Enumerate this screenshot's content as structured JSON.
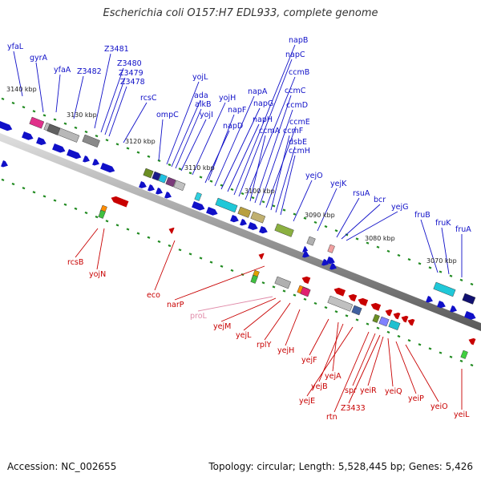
{
  "title": "Escherichia coli O157:H7 EDL933, complete genome",
  "accession": "Accession: NC_002655",
  "summary": "Topology: circular; Length: 5,528,445 bp; Genes: 5,426",
  "ticks": [
    "3140 kbp",
    "3130 kbp",
    "3120 kbp",
    "3110 kbp",
    "3100 kbp",
    "3090 kbp",
    "3080 kbp",
    "3070 kbp"
  ],
  "forward_labels": [
    "yfaL",
    "gyrA",
    "yfaA",
    "Z3482",
    "Z3481",
    "Z3480",
    "Z3479",
    "Z3478",
    "rcsC",
    "ompC",
    "yojL",
    "ada",
    "alkB",
    "yojI",
    "yojH",
    "napF",
    "napD",
    "napA",
    "napG",
    "napH",
    "napB",
    "napC",
    "ccmB",
    "ccmA",
    "ccmC",
    "ccmD",
    "ccmE",
    "ccmF",
    "dsbE",
    "ccmH",
    "yejO",
    "yejK",
    "rsuA",
    "bcr",
    "yejG",
    "fruB",
    "fruK",
    "fruA"
  ],
  "reverse_labels": [
    "rcsB",
    "yojN",
    "eco",
    "narP",
    "proL",
    "yejM",
    "yejL",
    "rplY",
    "yejH",
    "yejF",
    "yejB",
    "yejA",
    "yejE",
    "rtn",
    "spr",
    "Z3433",
    "yeiR",
    "yeiQ",
    "yeiP",
    "yeiO",
    "yeiL"
  ],
  "colors": {
    "forward": "#1010c8",
    "reverse": "#c80000",
    "rna": "#e08aa8",
    "backbone": "#808080",
    "grid": "#228b22"
  }
}
